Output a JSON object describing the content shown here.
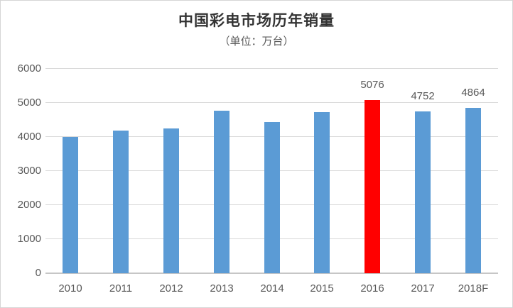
{
  "chart_data": {
    "type": "bar",
    "title": "中国彩电市场历年销量",
    "subtitle": "（单位：万台）",
    "categories": [
      "2010",
      "2011",
      "2012",
      "2013",
      "2014",
      "2015",
      "2016",
      "2017",
      "2018F"
    ],
    "values": [
      4000,
      4190,
      4260,
      4780,
      4440,
      4720,
      5076,
      4752,
      4864
    ],
    "data_labels": [
      "",
      "",
      "",
      "",
      "",
      "",
      "5076",
      "4752",
      "4864"
    ],
    "highlight_index": 6,
    "highlight_category": "2016",
    "xlabel": "",
    "ylabel": "",
    "ylim": [
      0,
      6000
    ],
    "ytick_interval": 1000,
    "ytick_labels": [
      "0",
      "1000",
      "2000",
      "3000",
      "4000",
      "5000",
      "6000"
    ],
    "grid": true,
    "legend": "none",
    "colors": {
      "bar": "#5B9BD5",
      "highlight": "#FF0000",
      "gridline": "#D9D9D9",
      "axis_line": "#C6C6C6",
      "tick_text": "#595959",
      "title_text": "#333333",
      "subtitle_text": "#595959",
      "background": "#FFFFFF",
      "border": "#D5D5D5"
    }
  }
}
